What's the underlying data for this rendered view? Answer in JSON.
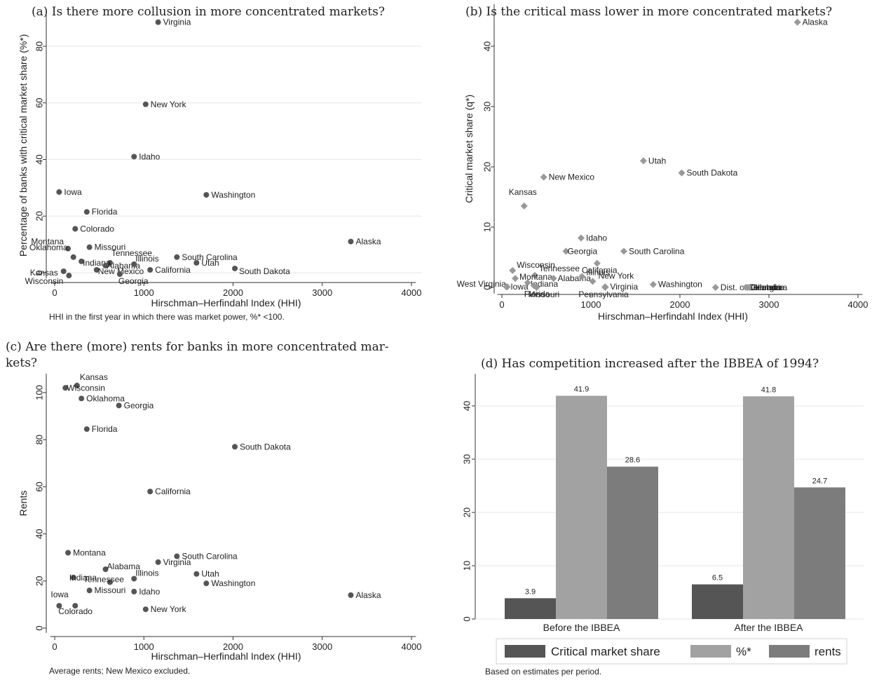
{
  "panels": {
    "a": {
      "title": "(a) Is there more collusion in more concentrated markets?"
    },
    "b": {
      "title": "(b) Is the critical mass lower in more concentrated markets?"
    },
    "c": {
      "title_line1": "(c) Are there (more) rents for banks in more concentrated mar-",
      "title_line2": "kets?"
    },
    "d": {
      "title": "(d) Has competition increased after the IBBEA of 1994?"
    }
  },
  "chart_data": [
    {
      "id": "a",
      "type": "scatter",
      "xlabel": "Hirschman–Herfindahl Index (HHI)",
      "ylabel": "Percentage of banks with critical market share (%*)",
      "note": "HHI in the first year in which there was market power, %* <100.",
      "xlim": [
        -50,
        4050
      ],
      "ylim": [
        -2,
        92
      ],
      "xticks": [
        0,
        1000,
        2000,
        3000,
        4000
      ],
      "yticks": [
        0,
        20,
        40,
        60,
        80
      ],
      "grid": true,
      "marker_color": "#555555",
      "points": [
        {
          "label": "Virginia",
          "x": 1160,
          "y": 88.5
        },
        {
          "label": "New York",
          "x": 1020,
          "y": 59.5
        },
        {
          "label": "Idaho",
          "x": 890,
          "y": 41
        },
        {
          "label": "Iowa",
          "x": 50,
          "y": 28.5
        },
        {
          "label": "Washington",
          "x": 1700,
          "y": 27.5
        },
        {
          "label": "Florida",
          "x": 360,
          "y": 21.5
        },
        {
          "label": "Colorado",
          "x": 230,
          "y": 15.5
        },
        {
          "label": "Montana",
          "x": 150,
          "y": 8.5
        },
        {
          "label": "Missouri",
          "x": 390,
          "y": 9
        },
        {
          "label": "Alaska",
          "x": 3320,
          "y": 11
        },
        {
          "label": "Oklahoma",
          "x": 210,
          "y": 5.5
        },
        {
          "label": "Tennessee",
          "x": 620,
          "y": 3.5
        },
        {
          "label": "South Carolina",
          "x": 1370,
          "y": 5.5
        },
        {
          "label": "Indiana",
          "x": 300,
          "y": 4
        },
        {
          "label": "Alabama",
          "x": 570,
          "y": 2.5
        },
        {
          "label": "Illinois",
          "x": 890,
          "y": 3
        },
        {
          "label": "Utah",
          "x": 1590,
          "y": 3.5
        },
        {
          "label": "New Mexico",
          "x": 470,
          "y": 1
        },
        {
          "label": "California",
          "x": 1070,
          "y": 1
        },
        {
          "label": "South Dakota",
          "x": 2020,
          "y": 1.5
        },
        {
          "label": "Kansas",
          "x": 100,
          "y": 0.5
        },
        {
          "label": "Wisconsin",
          "x": 160,
          "y": -1
        },
        {
          "label": "Georgia",
          "x": 730,
          "y": -0.5
        }
      ]
    },
    {
      "id": "b",
      "type": "scatter",
      "xlabel": "Hirschman–Herfindahl Index (HHI)",
      "ylabel": "Critical market share (q*)",
      "xlim": [
        -50,
        4050
      ],
      "ylim": [
        -1,
        47
      ],
      "xticks": [
        0,
        1000,
        2000,
        3000,
        4000
      ],
      "yticks": [
        0,
        10,
        20,
        30,
        40
      ],
      "grid": false,
      "marker_color": "#999999",
      "points": [
        {
          "label": "Alaska",
          "x": 3320,
          "y": 44
        },
        {
          "label": "Utah",
          "x": 1590,
          "y": 21
        },
        {
          "label": "South Dakota",
          "x": 2020,
          "y": 19
        },
        {
          "label": "New Mexico",
          "x": 470,
          "y": 18.3
        },
        {
          "label": "Kansas",
          "x": 250,
          "y": 13.5
        },
        {
          "label": "Idaho",
          "x": 890,
          "y": 8.2
        },
        {
          "label": "Georgia",
          "x": 720,
          "y": 6
        },
        {
          "label": "South Carolina",
          "x": 1370,
          "y": 6
        },
        {
          "label": "California",
          "x": 1070,
          "y": 4
        },
        {
          "label": "Wisconsin",
          "x": 120,
          "y": 2.8
        },
        {
          "label": "Tennessee",
          "x": 370,
          "y": 2
        },
        {
          "label": "Montana",
          "x": 150,
          "y": 1.5
        },
        {
          "label": "Alabama",
          "x": 580,
          "y": 1.5
        },
        {
          "label": "Illinois",
          "x": 900,
          "y": 1.8
        },
        {
          "label": "Indiana",
          "x": 290,
          "y": 0.8
        },
        {
          "label": "New York",
          "x": 1020,
          "y": 1
        },
        {
          "label": "West Virginia",
          "x": 60,
          "y": 0.1
        },
        {
          "label": "Iowa",
          "x": 50,
          "y": 0.1
        },
        {
          "label": "Florida",
          "x": 360,
          "y": 0.3
        },
        {
          "label": "Missouri",
          "x": 390,
          "y": 0
        },
        {
          "label": "Pennsylvania",
          "x": 1160,
          "y": 0
        },
        {
          "label": "Virginia",
          "x": 1160,
          "y": 0.1
        },
        {
          "label": "Washington",
          "x": 1700,
          "y": 0.5
        },
        {
          "label": "Dist. of Columbia",
          "x": 2400,
          "y": 0
        },
        {
          "label": "Colorado",
          "x": 2740,
          "y": 0
        },
        {
          "label": "Oklahoma",
          "x": 2760,
          "y": 0
        },
        {
          "label": "Georgia",
          "x": 2780,
          "y": 0
        }
      ]
    },
    {
      "id": "c",
      "type": "scatter",
      "xlabel": "Hirschman–Herfindahl Index (HHI)",
      "ylabel": "Rents",
      "note": "Average rents; New Mexico excluded.",
      "xlim": [
        -50,
        4050
      ],
      "ylim": [
        -2,
        108
      ],
      "xticks": [
        0,
        1000,
        2000,
        3000,
        4000
      ],
      "yticks": [
        0,
        20,
        40,
        60,
        80,
        100
      ],
      "grid": false,
      "marker_color": "#555555",
      "points": [
        {
          "label": "Kansas",
          "x": 250,
          "y": 103
        },
        {
          "label": "Wisconsin",
          "x": 120,
          "y": 102
        },
        {
          "label": "Oklahoma",
          "x": 300,
          "y": 97.5
        },
        {
          "label": "Georgia",
          "x": 720,
          "y": 94.5
        },
        {
          "label": "Florida",
          "x": 360,
          "y": 84.5
        },
        {
          "label": "South Dakota",
          "x": 2020,
          "y": 77
        },
        {
          "label": "California",
          "x": 1070,
          "y": 58
        },
        {
          "label": "Montana",
          "x": 150,
          "y": 32
        },
        {
          "label": "South Carolina",
          "x": 1370,
          "y": 30.5
        },
        {
          "label": "Virginia",
          "x": 1160,
          "y": 28
        },
        {
          "label": "Alabama",
          "x": 570,
          "y": 25
        },
        {
          "label": "Utah",
          "x": 1590,
          "y": 23
        },
        {
          "label": "Illinois",
          "x": 890,
          "y": 21
        },
        {
          "label": "Tennessee",
          "x": 620,
          "y": 19.5
        },
        {
          "label": "Indiana",
          "x": 210,
          "y": 21.5
        },
        {
          "label": "Washington",
          "x": 1700,
          "y": 19
        },
        {
          "label": "Missouri",
          "x": 390,
          "y": 16
        },
        {
          "label": "Idaho",
          "x": 890,
          "y": 15.5
        },
        {
          "label": "Alaska",
          "x": 3320,
          "y": 14
        },
        {
          "label": "Iowa",
          "x": 50,
          "y": 9.5
        },
        {
          "label": "Colorado",
          "x": 230,
          "y": 9.5
        },
        {
          "label": "New York",
          "x": 1020,
          "y": 8
        }
      ]
    },
    {
      "id": "d",
      "type": "bar",
      "categories": [
        "Before the IBBEA",
        "After the IBBEA"
      ],
      "ylim": [
        0,
        46
      ],
      "yticks": [
        0,
        10,
        20,
        30,
        40
      ],
      "note": "Based on estimates per period.",
      "series": [
        {
          "name": "Critical market share",
          "color": "#555555",
          "values": [
            3.9,
            6.5
          ]
        },
        {
          "name": "%*",
          "color": "#a2a2a2",
          "values": [
            41.9,
            41.8
          ]
        },
        {
          "name": "rents",
          "color": "#7c7c7c",
          "values": [
            28.6,
            24.7
          ]
        }
      ],
      "data_labels": [
        [
          "3.9",
          "41.9",
          "28.6"
        ],
        [
          "6.5",
          "41.8",
          "24.7"
        ]
      ],
      "legend_position": "bottom"
    }
  ]
}
